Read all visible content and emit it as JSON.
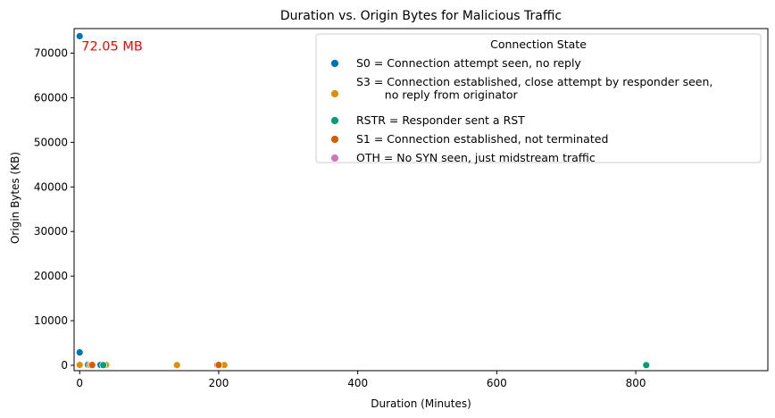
{
  "chart_data": {
    "type": "scatter",
    "title": "Duration vs. Origin Bytes for Malicious Traffic",
    "xlabel": "Duration (Minutes)",
    "ylabel": "Origin Bytes (KB)",
    "xlim": [
      -8,
      990
    ],
    "ylim": [
      -1200,
      75500
    ],
    "xticks": [
      0,
      200,
      400,
      600,
      800
    ],
    "yticks": [
      0,
      10000,
      20000,
      30000,
      40000,
      50000,
      60000,
      70000
    ],
    "grid": false,
    "legend": {
      "title": "Connection State",
      "placement": "top-right"
    },
    "series": [
      {
        "name": "S0 = Connection attempt seen, no reply",
        "color": "#0173b2",
        "points": [
          [
            0,
            73800
          ],
          [
            0,
            2900
          ],
          [
            12,
            120
          ],
          [
            30,
            90
          ],
          [
            36,
            60
          ]
        ]
      },
      {
        "name": "S3 = Connection established, close attempt by responder seen,\n        no reply from originator",
        "color": "#de8f05",
        "points": [
          [
            0,
            80
          ],
          [
            15,
            60
          ],
          [
            38,
            90
          ],
          [
            140,
            50
          ],
          [
            208,
            60
          ]
        ]
      },
      {
        "name": "RSTR = Responder sent a RST",
        "color": "#029e73",
        "points": [
          [
            34,
            40
          ],
          [
            815,
            40
          ]
        ]
      },
      {
        "name": "S1 = Connection established, not terminated",
        "color": "#d55e00",
        "points": [
          [
            18,
            70
          ],
          [
            198,
            80
          ],
          [
            200,
            70
          ]
        ]
      },
      {
        "name": "OTH = No SYN seen, just midstream traffic",
        "color": "#cc78bc",
        "points": []
      }
    ],
    "annotations": [
      {
        "text": "72.05 MB",
        "x": 0,
        "y": 73800,
        "color": "#ff0000"
      }
    ]
  }
}
